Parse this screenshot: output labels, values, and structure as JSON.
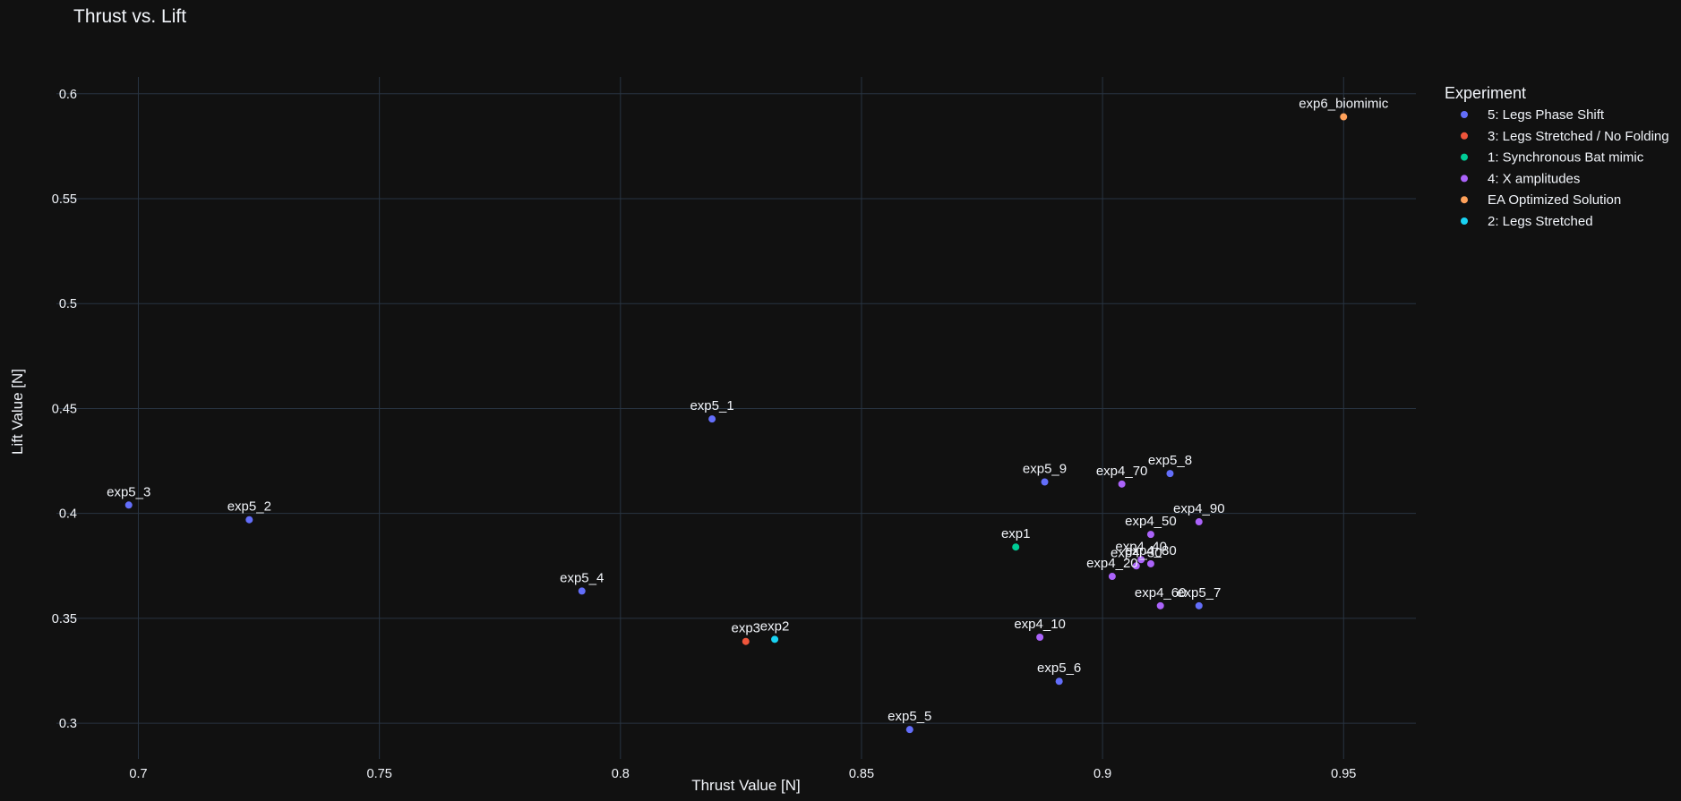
{
  "chart_data": {
    "type": "scatter",
    "title": "Thrust vs. Lift",
    "xlabel": "Thrust Value [N]",
    "ylabel": "Lift Value [N]",
    "xlim": [
      0.683,
      0.965
    ],
    "ylim": [
      0.283,
      0.608
    ],
    "x_ticks": [
      0.7,
      0.75,
      0.8,
      0.85,
      0.9,
      0.95
    ],
    "x_tick_labels": [
      "0.7",
      "0.75",
      "0.8",
      "0.85",
      "0.9",
      "0.95"
    ],
    "y_ticks": [
      0.3,
      0.35,
      0.4,
      0.45,
      0.5,
      0.55,
      0.6
    ],
    "y_tick_labels": [
      "0.3",
      "0.35",
      "0.4",
      "0.45",
      "0.5",
      "0.55",
      "0.6"
    ],
    "grid": true,
    "legend": {
      "title": "Experiment",
      "placement": "right"
    },
    "series": [
      {
        "name": "5: Legs Phase Shift",
        "color": "#636efa",
        "points": [
          {
            "label": "exp5_1",
            "x": 0.819,
            "y": 0.445
          },
          {
            "label": "exp5_2",
            "x": 0.723,
            "y": 0.397
          },
          {
            "label": "exp5_3",
            "x": 0.698,
            "y": 0.404
          },
          {
            "label": "exp5_4",
            "x": 0.792,
            "y": 0.363
          },
          {
            "label": "exp5_5",
            "x": 0.86,
            "y": 0.297
          },
          {
            "label": "exp5_6",
            "x": 0.891,
            "y": 0.32
          },
          {
            "label": "exp5_7",
            "x": 0.92,
            "y": 0.356
          },
          {
            "label": "exp5_8",
            "x": 0.914,
            "y": 0.419
          },
          {
            "label": "exp5_9",
            "x": 0.888,
            "y": 0.415
          }
        ]
      },
      {
        "name": "3: Legs Stretched / No Folding",
        "color": "#ef553b",
        "points": [
          {
            "label": "exp3",
            "x": 0.826,
            "y": 0.339
          }
        ]
      },
      {
        "name": "1: Synchronous Bat mimic",
        "color": "#00cc96",
        "points": [
          {
            "label": "exp1",
            "x": 0.882,
            "y": 0.384
          }
        ]
      },
      {
        "name": "4: X amplitudes",
        "color": "#ab63fa",
        "points": [
          {
            "label": "exp4_10",
            "x": 0.887,
            "y": 0.341
          },
          {
            "label": "exp4_20",
            "x": 0.902,
            "y": 0.37
          },
          {
            "label": "exp4_30",
            "x": 0.907,
            "y": 0.375
          },
          {
            "label": "exp4_40",
            "x": 0.908,
            "y": 0.378
          },
          {
            "label": "exp4_50",
            "x": 0.91,
            "y": 0.39
          },
          {
            "label": "exp4_60",
            "x": 0.912,
            "y": 0.356
          },
          {
            "label": "exp4_70",
            "x": 0.904,
            "y": 0.414
          },
          {
            "label": "exp4_80",
            "x": 0.91,
            "y": 0.376
          },
          {
            "label": "exp4_90",
            "x": 0.92,
            "y": 0.396
          }
        ]
      },
      {
        "name": "EA Optimized Solution",
        "color": "#ffa15a",
        "points": [
          {
            "label": "exp6_biomimic",
            "x": 0.95,
            "y": 0.589
          }
        ]
      },
      {
        "name": "2: Legs Stretched",
        "color": "#19d3f3",
        "points": [
          {
            "label": "exp2",
            "x": 0.832,
            "y": 0.34
          }
        ]
      }
    ]
  },
  "colors": {
    "background": "#111111",
    "grid": "#283442",
    "text": "#f2f5fa"
  }
}
